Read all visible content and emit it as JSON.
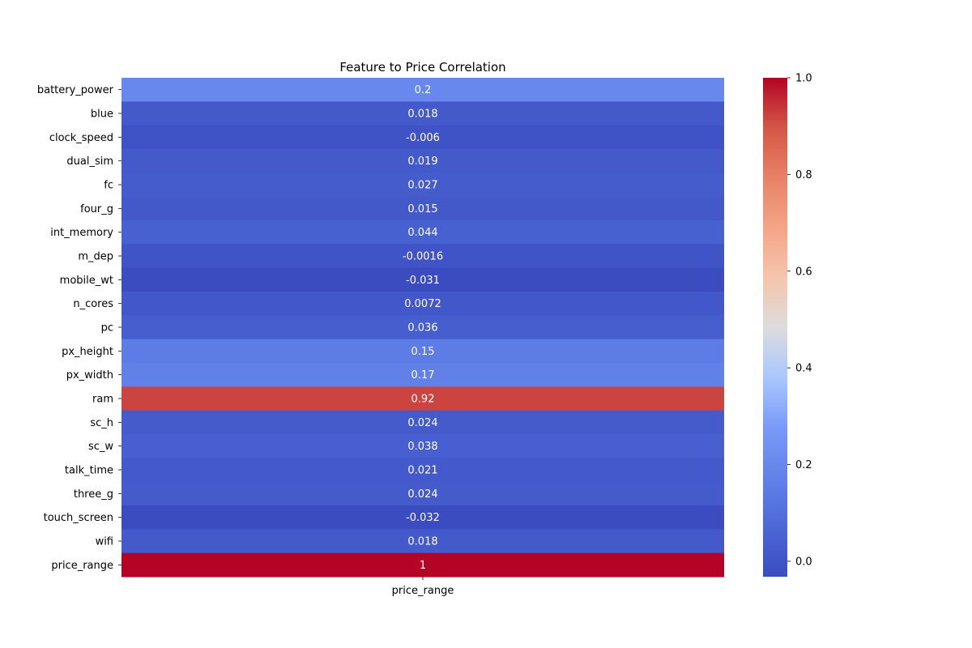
{
  "chart_data": {
    "type": "heatmap",
    "title": "Feature to Price Correlation",
    "columns": [
      "price_range"
    ],
    "rows": [
      "battery_power",
      "blue",
      "clock_speed",
      "dual_sim",
      "fc",
      "four_g",
      "int_memory",
      "m_dep",
      "mobile_wt",
      "n_cores",
      "pc",
      "px_height",
      "px_width",
      "ram",
      "sc_h",
      "sc_w",
      "talk_time",
      "three_g",
      "touch_screen",
      "wifi",
      "price_range"
    ],
    "values": [
      0.2,
      0.018,
      -0.006,
      0.019,
      0.027,
      0.015,
      0.044,
      -0.0016,
      -0.031,
      0.0072,
      0.036,
      0.15,
      0.17,
      0.92,
      0.024,
      0.038,
      0.021,
      0.024,
      -0.032,
      0.018,
      1
    ],
    "cell_labels": [
      "0.2",
      "0.018",
      "-0.006",
      "0.019",
      "0.027",
      "0.015",
      "0.044",
      "-0.0016",
      "-0.031",
      "0.0072",
      "0.036",
      "0.15",
      "0.17",
      "0.92",
      "0.024",
      "0.038",
      "0.021",
      "0.024",
      "-0.032",
      "0.018",
      "1"
    ],
    "colormap": "coolwarm",
    "colorbar": {
      "min": -0.032,
      "max": 1.0,
      "ticks": [
        0.0,
        0.2,
        0.4,
        0.6,
        0.8,
        1.0
      ],
      "tick_labels": [
        "0.0",
        "0.2",
        "0.4",
        "0.6",
        "0.8",
        "1.0"
      ]
    }
  }
}
